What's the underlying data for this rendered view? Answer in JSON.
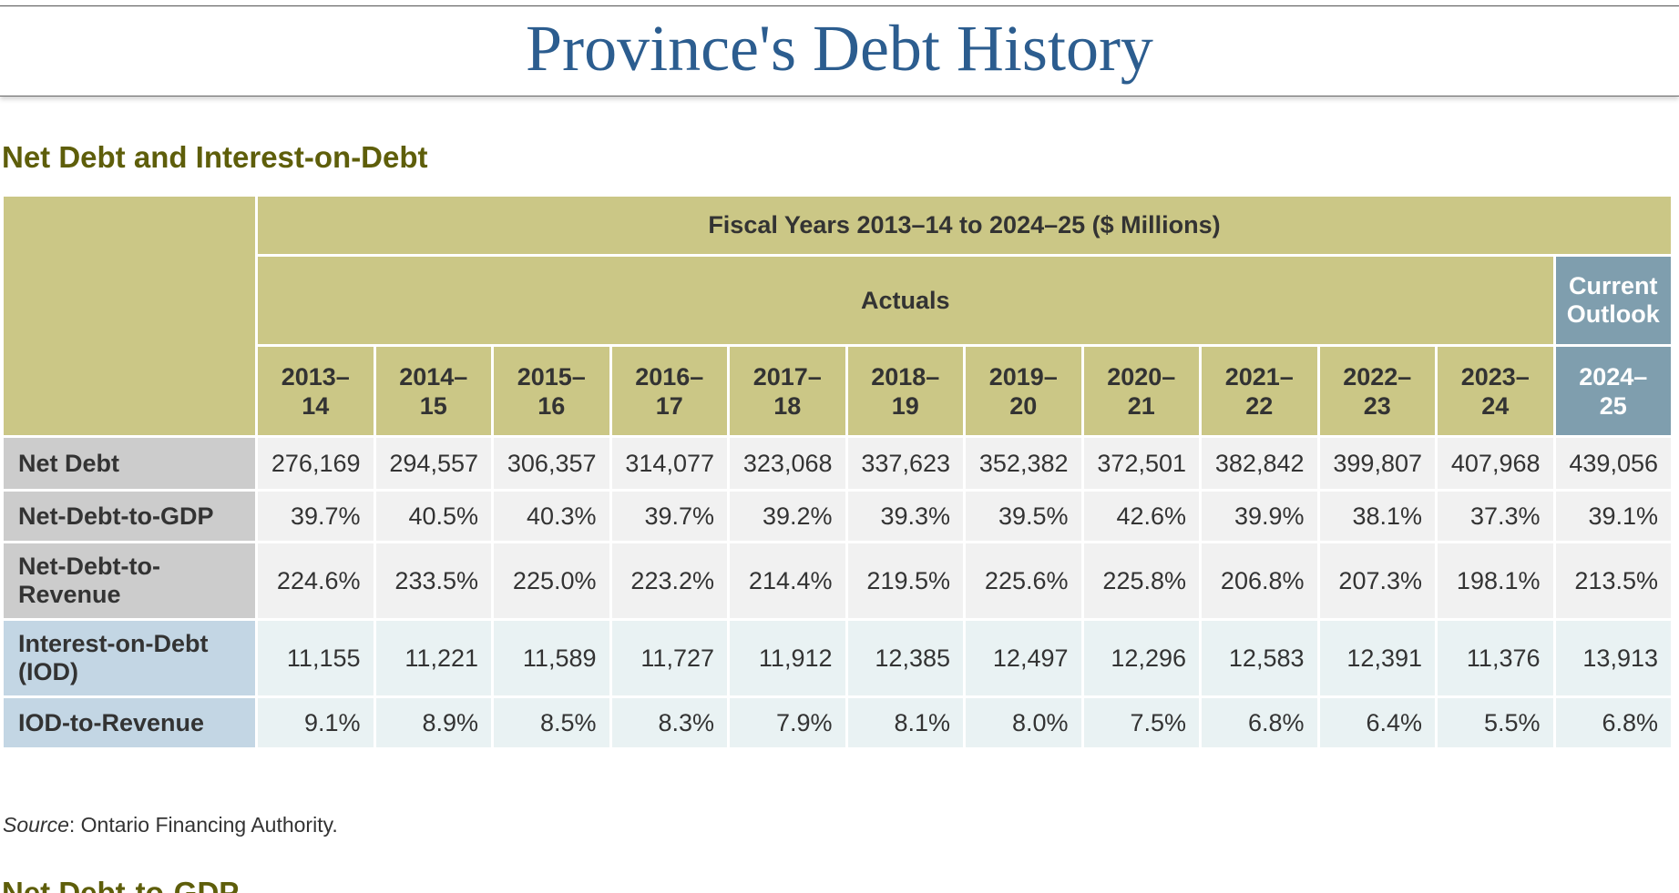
{
  "page_title": "Province's Debt History",
  "section_heading": "Net Debt and Interest-on-Debt",
  "table": {
    "fiscal_header": "Fiscal Years 2013–14 to 2024–25 ($ Millions)",
    "actuals_header": "Actuals",
    "outlook_header": "Current Outlook",
    "years": [
      {
        "top": "2013–",
        "bottom": "14"
      },
      {
        "top": "2014–",
        "bottom": "15"
      },
      {
        "top": "2015–",
        "bottom": "16"
      },
      {
        "top": "2016–",
        "bottom": "17"
      },
      {
        "top": "2017–",
        "bottom": "18"
      },
      {
        "top": "2018–",
        "bottom": "19"
      },
      {
        "top": "2019–",
        "bottom": "20"
      },
      {
        "top": "2020–",
        "bottom": "21"
      },
      {
        "top": "2021–",
        "bottom": "22"
      },
      {
        "top": "2022–",
        "bottom": "23"
      },
      {
        "top": "2023–",
        "bottom": "24"
      },
      {
        "top": "2024–",
        "bottom": "25"
      }
    ],
    "rows": [
      {
        "label": "Net Debt",
        "style": "grey",
        "values": [
          "276,169",
          "294,557",
          "306,357",
          "314,077",
          "323,068",
          "337,623",
          "352,382",
          "372,501",
          "382,842",
          "399,807",
          "407,968",
          "439,056"
        ]
      },
      {
        "label": "Net-Debt-to-GDP",
        "style": "grey",
        "values": [
          "39.7%",
          "40.5%",
          "40.3%",
          "39.7%",
          "39.2%",
          "39.3%",
          "39.5%",
          "42.6%",
          "39.9%",
          "38.1%",
          "37.3%",
          "39.1%"
        ]
      },
      {
        "label": "Net-Debt-to-Revenue",
        "style": "grey",
        "values": [
          "224.6%",
          "233.5%",
          "225.0%",
          "223.2%",
          "214.4%",
          "219.5%",
          "225.6%",
          "225.8%",
          "206.8%",
          "207.3%",
          "198.1%",
          "213.5%"
        ]
      },
      {
        "label": "Interest-on-Debt (IOD)",
        "style": "blue",
        "values": [
          "11,155",
          "11,221",
          "11,589",
          "11,727",
          "11,912",
          "12,385",
          "12,497",
          "12,296",
          "12,583",
          "12,391",
          "11,376",
          "13,913"
        ]
      },
      {
        "label": "IOD-to-Revenue",
        "style": "blue",
        "values": [
          "9.1%",
          "8.9%",
          "8.5%",
          "8.3%",
          "7.9%",
          "8.1%",
          "8.0%",
          "7.5%",
          "6.8%",
          "6.4%",
          "5.5%",
          "6.8%"
        ]
      }
    ]
  },
  "source": {
    "label": "Source",
    "text": ": Ontario Financing Authority."
  },
  "next_heading": "Net Debt-to-GDP",
  "colors": {
    "title": "#2c5d8f",
    "heading": "#5e5e0a",
    "olive_header": "#cbc786",
    "outlook_header": "#7f9eae",
    "grey_label": "#cccccc",
    "grey_cell": "#f1f1f1",
    "blue_label": "#c3d6e4",
    "blue_cell": "#e9f2f3"
  }
}
